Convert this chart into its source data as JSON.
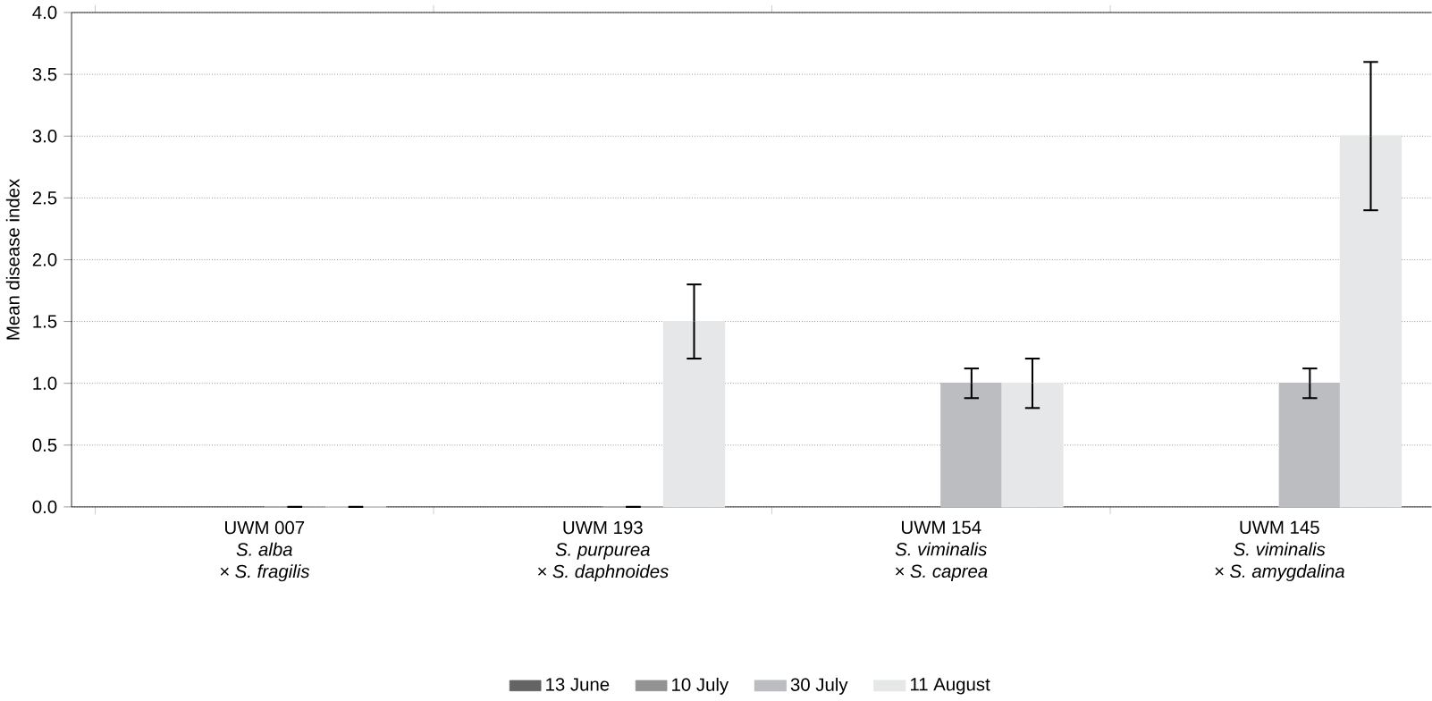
{
  "chart_data": {
    "type": "bar",
    "ylabel": "Mean disease index",
    "categories": [
      "UWM 007\n*S. alba*\n*× S. fragilis*",
      "UWM 193\n*S. purpurea*\n*× S. daphnoides*",
      "UWM 154\n*S. viminalis*\n*× S. caprea*",
      "UWM 145\n*S. viminalis*\n*× S. amygdalina*"
    ],
    "series": [
      {
        "name": "13 June",
        "color": "#636466",
        "values": [
          null,
          null,
          null,
          null
        ]
      },
      {
        "name": "10 July",
        "color": "#929395",
        "values": [
          null,
          null,
          null,
          null
        ]
      },
      {
        "name": "30 July",
        "color": "#bcbdc0",
        "values": [
          0,
          0,
          1.0,
          1.0
        ],
        "errors": [
          0,
          0,
          0.12,
          0.12
        ]
      },
      {
        "name": "11 August",
        "color": "#e6e7e8",
        "values": [
          0,
          1.5,
          1.0,
          3.0
        ],
        "errors": [
          0,
          0.3,
          0.2,
          0.6
        ]
      }
    ],
    "ylim": [
      0,
      4.0
    ],
    "yticks": [
      {
        "value": 0,
        "label": "0.0"
      },
      {
        "value": 0.5,
        "label": "0.5"
      },
      {
        "value": 1,
        "label": "1.0"
      },
      {
        "value": 1.5,
        "label": "1.5"
      },
      {
        "value": 2,
        "label": "2.0"
      },
      {
        "value": 2.5,
        "label": "2.5"
      },
      {
        "value": 3,
        "label": "3.0"
      },
      {
        "value": 3.5,
        "label": "3.5"
      },
      {
        "value": 4,
        "label": "4.0"
      }
    ],
    "grid": "y",
    "legend": "bottom"
  }
}
